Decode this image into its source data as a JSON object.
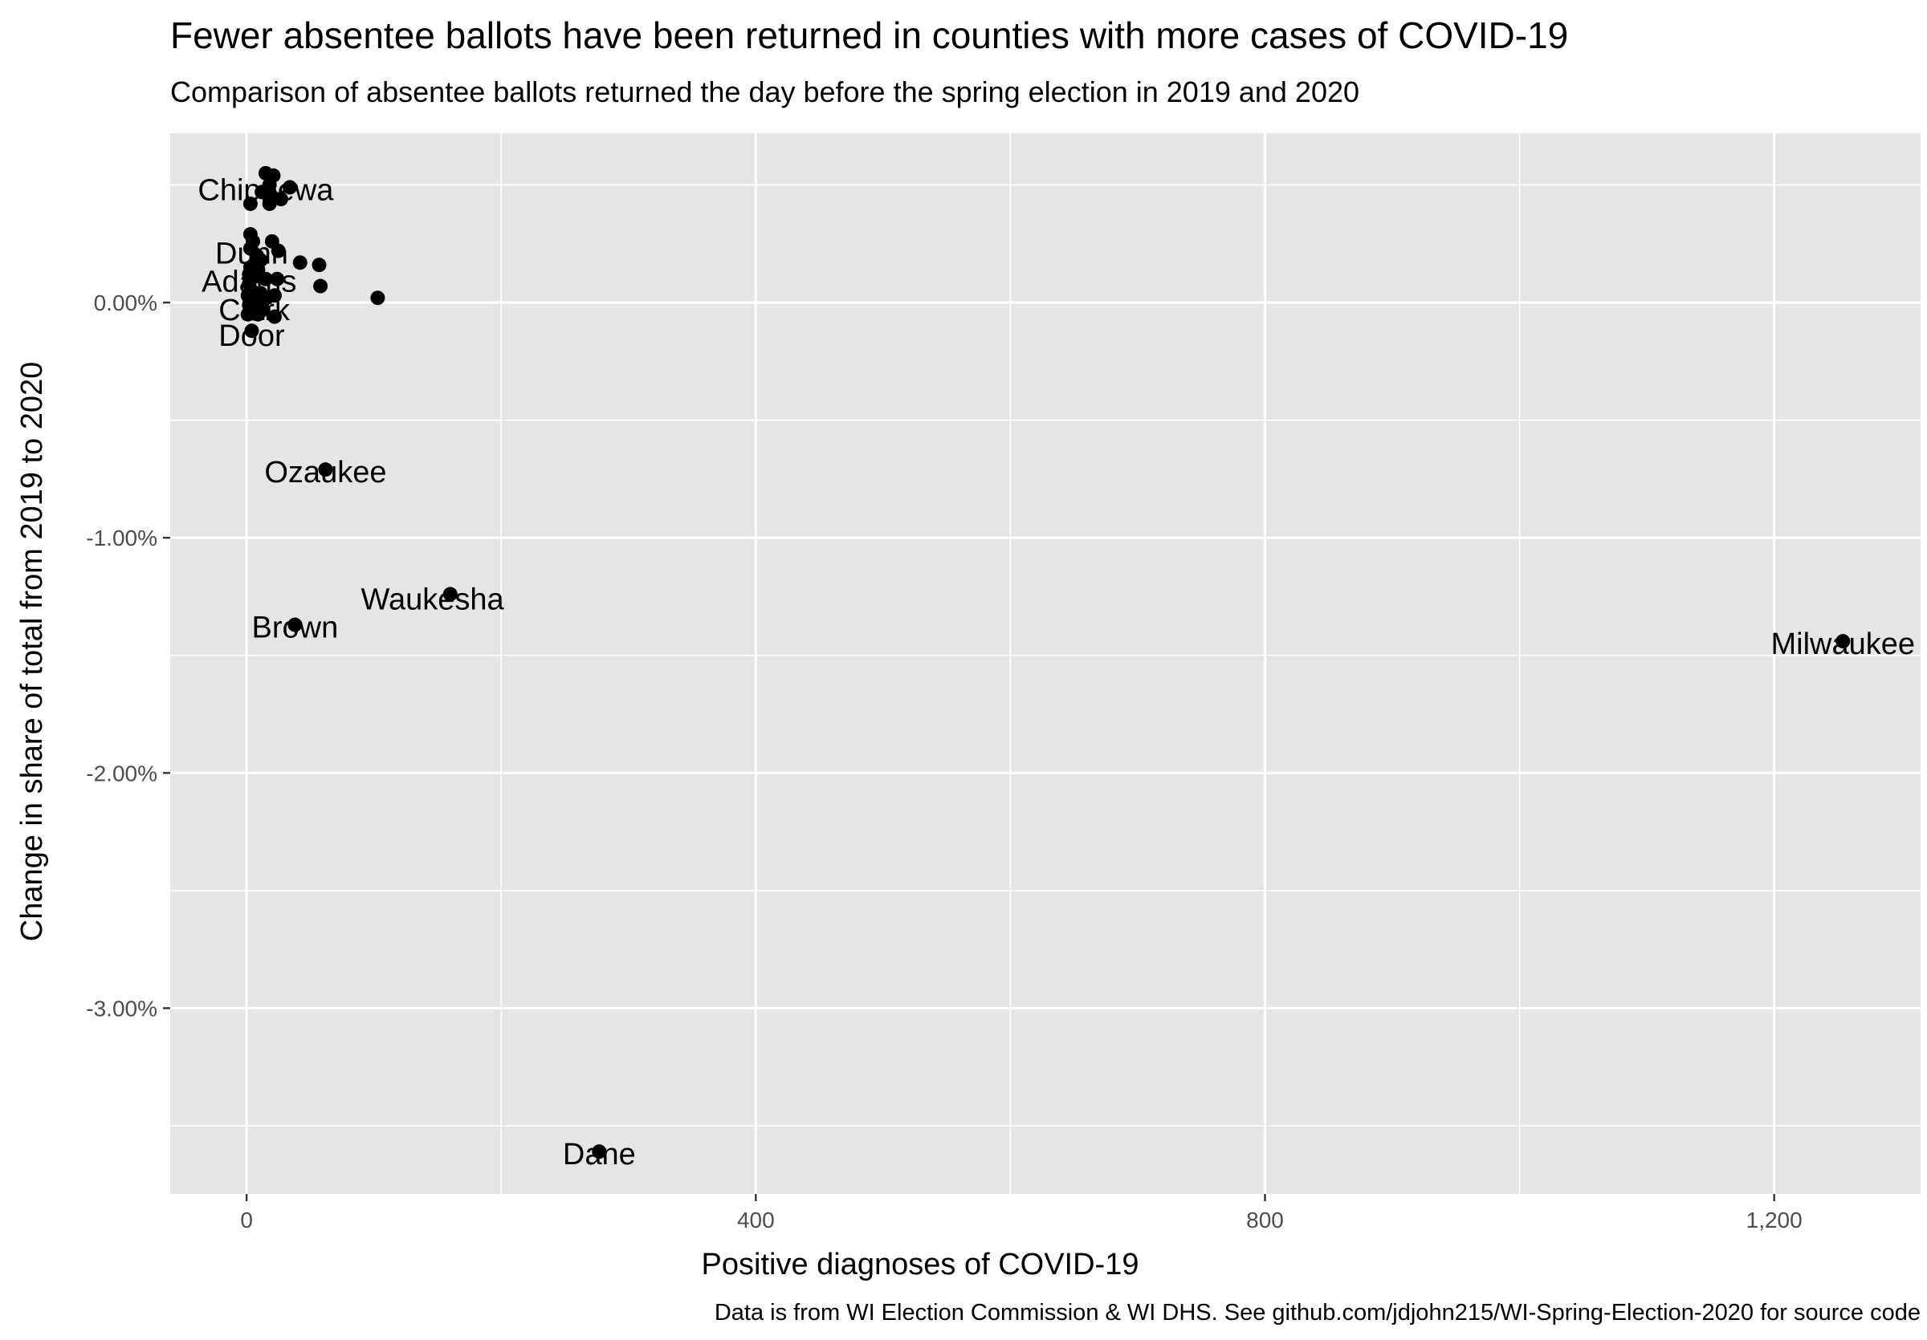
{
  "chart_data": {
    "type": "scatter",
    "title": "Fewer absentee ballots have been returned in counties with more cases of COVID-19",
    "subtitle": "Comparison of absentee ballots returned the day before the spring election in 2019 and 2020",
    "xlabel": "Positive diagnoses of COVID-19",
    "ylabel": "Change in share of total from 2019 to 2020",
    "caption": "Data is from WI Election Commission & WI DHS. See github.com/jdjohn215/WI-Spring-Election-2020 for source code",
    "xlim": [
      -60,
      1315
    ],
    "ylim": [
      -3.79,
      0.72
    ],
    "x_ticks": [
      {
        "value": 0,
        "label": "0"
      },
      {
        "value": 400,
        "label": "400"
      },
      {
        "value": 800,
        "label": "800"
      },
      {
        "value": 1200,
        "label": "1,200"
      }
    ],
    "x_minor_ticks": [
      200,
      600,
      1000
    ],
    "y_ticks": [
      {
        "value": 0,
        "label": "0.00%"
      },
      {
        "value": -1,
        "label": "-1.00%"
      },
      {
        "value": -2,
        "label": "-2.00%"
      },
      {
        "value": -3,
        "label": "-3.00%"
      }
    ],
    "y_minor_ticks": [
      0.5,
      -0.5,
      -1.5,
      -2.5,
      -3.5
    ],
    "grid": true,
    "colors": {
      "panel": "#e5e5e5",
      "grid": "#ffffff",
      "point": "#000000",
      "tick_text": "#4d4d4d"
    },
    "points": [
      {
        "x": 15,
        "y": 0.55
      },
      {
        "x": 21,
        "y": 0.54
      },
      {
        "x": 18,
        "y": 0.5
      },
      {
        "x": 34,
        "y": 0.49
      },
      {
        "x": 12,
        "y": 0.47
      },
      {
        "x": 20,
        "y": 0.45
      },
      {
        "x": 27,
        "y": 0.44
      },
      {
        "x": 3,
        "y": 0.42
      },
      {
        "x": 18,
        "y": 0.42
      },
      {
        "x": 3,
        "y": 0.29
      },
      {
        "x": 5,
        "y": 0.26
      },
      {
        "x": 20,
        "y": 0.26
      },
      {
        "x": 3,
        "y": 0.23
      },
      {
        "x": 25,
        "y": 0.22
      },
      {
        "x": 8,
        "y": 0.2
      },
      {
        "x": 11,
        "y": 0.18
      },
      {
        "x": 42,
        "y": 0.17
      },
      {
        "x": 57,
        "y": 0.16
      },
      {
        "x": 3,
        "y": 0.15
      },
      {
        "x": 9,
        "y": 0.14
      },
      {
        "x": 2,
        "y": 0.12
      },
      {
        "x": 6,
        "y": 0.11
      },
      {
        "x": 15,
        "y": 0.1
      },
      {
        "x": 24,
        "y": 0.1
      },
      {
        "x": 2,
        "y": 0.08
      },
      {
        "x": 58,
        "y": 0.07
      },
      {
        "x": 4,
        "y": 0.05
      },
      {
        "x": 11,
        "y": 0.04
      },
      {
        "x": 1,
        "y": 0.03
      },
      {
        "x": 22,
        "y": 0.03
      },
      {
        "x": 103,
        "y": 0.02
      },
      {
        "x": 16,
        "y": 0.02
      },
      {
        "x": 6,
        "y": 0.01
      },
      {
        "x": 2,
        "y": -0.01
      },
      {
        "x": 8,
        "y": -0.02
      },
      {
        "x": 13,
        "y": -0.03
      },
      {
        "x": 1,
        "y": -0.05
      },
      {
        "x": 9,
        "y": -0.05
      },
      {
        "x": 22,
        "y": -0.06
      },
      {
        "x": 4,
        "y": -0.12
      },
      {
        "x": 62,
        "y": -0.71
      },
      {
        "x": 160,
        "y": -1.24
      },
      {
        "x": 38,
        "y": -1.37
      },
      {
        "x": 1254,
        "y": -1.44
      },
      {
        "x": 277,
        "y": -3.61
      }
    ],
    "labels": [
      {
        "text": "Chippewa",
        "x": 15,
        "y": 0.48
      },
      {
        "text": "Dunn",
        "x": 4,
        "y": 0.21
      },
      {
        "text": "Adams",
        "x": 2,
        "y": 0.09
      },
      {
        "text": "Clark",
        "x": 6,
        "y": -0.03
      },
      {
        "text": "Door",
        "x": 4,
        "y": -0.14
      },
      {
        "text": "Ozaukee",
        "x": 62,
        "y": -0.72
      },
      {
        "text": "Waukesha",
        "x": 146,
        "y": -1.26
      },
      {
        "text": "Brown",
        "x": 38,
        "y": -1.38
      },
      {
        "text": "Milwaukee",
        "x": 1254,
        "y": -1.45
      },
      {
        "text": "Dane",
        "x": 277,
        "y": -3.62
      }
    ]
  }
}
